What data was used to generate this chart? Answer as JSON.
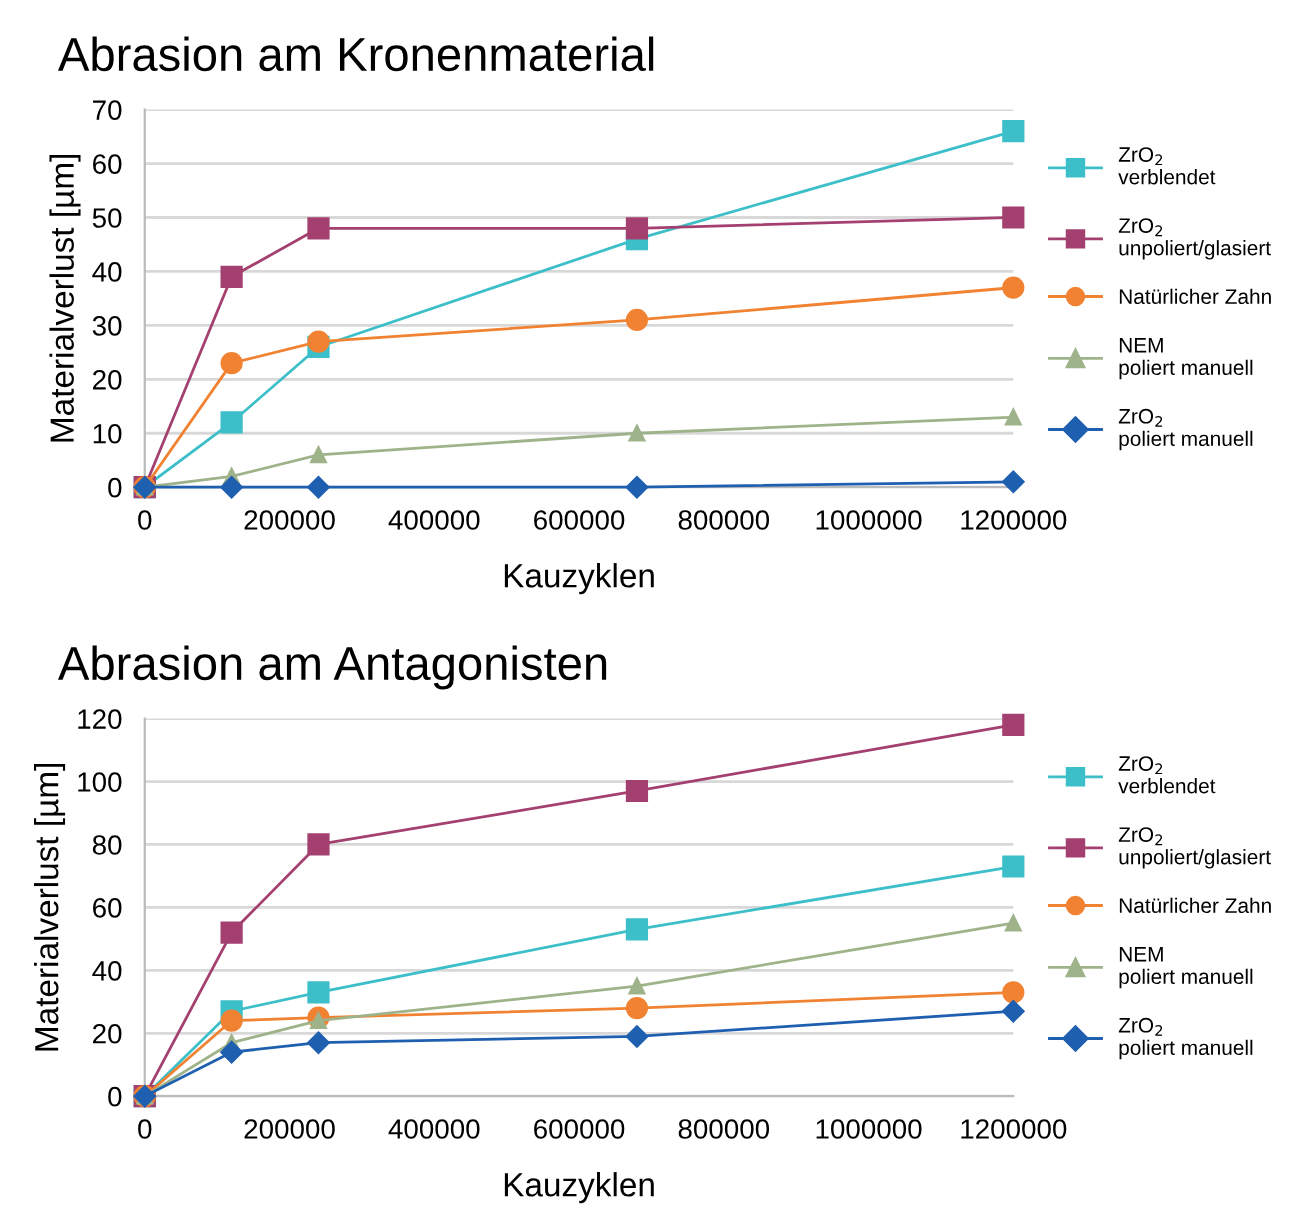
{
  "chart_data": [
    {
      "type": "line",
      "title": "Abrasion am Kronenmaterial",
      "xlabel": "Kauzyklen",
      "ylabel": "Materialverlust [µm]",
      "x": [
        0,
        120000,
        240000,
        680000,
        1200000
      ],
      "xlim": [
        0,
        1200000
      ],
      "xticks": [
        0,
        200000,
        400000,
        600000,
        800000,
        1000000,
        1200000
      ],
      "ylim": [
        0,
        70
      ],
      "yticks": [
        0,
        10,
        20,
        30,
        40,
        50,
        60,
        70
      ],
      "grid": "y",
      "legend": "right",
      "series": [
        {
          "name": "ZrO$_{2}$\nverblendet",
          "color": "#3cbfc8",
          "marker": "square",
          "values": [
            0,
            12,
            26,
            46,
            66
          ]
        },
        {
          "name": "ZrO$_{2}$\nunpoliert/glasiert",
          "color": "#a3406f",
          "marker": "square",
          "values": [
            0,
            39,
            48,
            48,
            50
          ]
        },
        {
          "name": "Natürlicher Zahn",
          "color": "#f08232",
          "marker": "circle",
          "values": [
            0,
            23,
            27,
            31,
            37
          ]
        },
        {
          "name": "NEM\npoliert manuell",
          "color": "#9fb38a",
          "marker": "triangle",
          "values": [
            0,
            2,
            6,
            10,
            13
          ]
        },
        {
          "name": "ZrO$_{2}$\npoliert manuell",
          "color": "#1f5fb0",
          "marker": "diamond",
          "values": [
            0,
            0,
            0,
            0,
            1
          ]
        }
      ]
    },
    {
      "type": "line",
      "title": "Abrasion am Antagonisten",
      "xlabel": "Kauzyklen",
      "ylabel": "Materialverlust [µm]",
      "x": [
        0,
        120000,
        240000,
        680000,
        1200000
      ],
      "xlim": [
        0,
        1200000
      ],
      "xticks": [
        0,
        200000,
        400000,
        600000,
        800000,
        1000000,
        1200000
      ],
      "ylim": [
        0,
        120
      ],
      "yticks": [
        0,
        20,
        40,
        60,
        80,
        100,
        120
      ],
      "grid": "y",
      "legend": "right",
      "series": [
        {
          "name": "ZrO$_{2}$\nverblendet",
          "color": "#3cbfc8",
          "marker": "square",
          "values": [
            0,
            27,
            33,
            53,
            73
          ]
        },
        {
          "name": "ZrO$_{2}$\nunpoliert/glasiert",
          "color": "#a3406f",
          "marker": "square",
          "values": [
            0,
            52,
            80,
            97,
            118
          ]
        },
        {
          "name": "Natürlicher Zahn",
          "color": "#f08232",
          "marker": "circle",
          "values": [
            0,
            24,
            25,
            28,
            33
          ]
        },
        {
          "name": "NEM\npoliert manuell",
          "color": "#9fb38a",
          "marker": "triangle",
          "values": [
            0,
            17,
            24,
            35,
            55
          ]
        },
        {
          "name": "ZrO$_{2}$\npoliert manuell",
          "color": "#1f5fb0",
          "marker": "diamond",
          "values": [
            0,
            14,
            17,
            19,
            27
          ]
        }
      ]
    }
  ]
}
